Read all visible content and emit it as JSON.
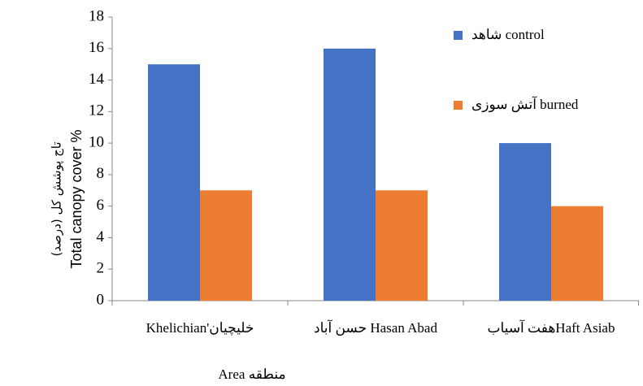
{
  "chart_data": {
    "type": "bar",
    "categories": [
      "Khelichian'خلیچیان",
      "حسن آباد Hasan Abad",
      "هفت آسیابHaft Asiab"
    ],
    "series": [
      {
        "name": "شاهد control",
        "color": "#4472c4",
        "values": [
          15,
          16,
          10
        ]
      },
      {
        "name": "آتش سوزی burned",
        "color": "#ed7d31",
        "values": [
          7,
          7,
          6
        ]
      }
    ],
    "ylim": [
      0,
      18
    ],
    "yticks": [
      0,
      2,
      4,
      6,
      8,
      10,
      12,
      14,
      16,
      18
    ],
    "ylabel": [
      "تاج پوشش کل (درصد)",
      "Total canopy cover %"
    ],
    "xlabel": "Area منطقه",
    "grid": false,
    "legend": "upper right"
  }
}
